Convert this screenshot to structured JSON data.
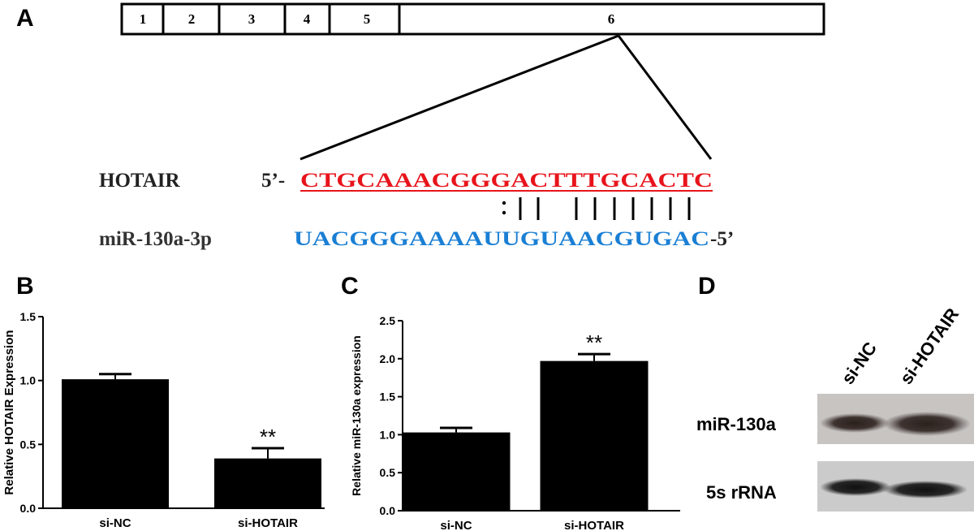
{
  "panels": {
    "a": "A",
    "b": "B",
    "c": "C",
    "d": "D"
  },
  "gene_map": {
    "exons": [
      "1",
      "2",
      "3",
      "4",
      "5",
      "6"
    ]
  },
  "alignment": {
    "hotair_label": "HOTAIR",
    "hotair_prefix": "5’-",
    "hotair_seq": "CTGCAAACGGGACTTTGCACTC",
    "pairing": ":||  |||||||",
    "mir_label": "miR-130a-3p",
    "mir_seq": "UACGGGAAAAUUGUAACGUGAC",
    "mir_suffix": "-5’",
    "colors": {
      "hotair": "#e8141b",
      "mir": "#1a7fd4"
    }
  },
  "western": {
    "lane_labels": [
      "si-NC",
      "si-HOTAIR"
    ],
    "row_labels": [
      "miR-130a",
      "5s rRNA"
    ]
  },
  "chart_data": [
    {
      "type": "bar",
      "panel": "B",
      "categories": [
        "si-NC",
        "si-HOTAIR"
      ],
      "values": [
        1.01,
        0.39
      ],
      "errors": [
        0.04,
        0.08
      ],
      "significance": [
        "",
        "**"
      ],
      "ylabel": "Relative HOTAIR Expression",
      "ylim": [
        0,
        1.5
      ],
      "yticks": [
        "0.0",
        "0.5",
        "1.0",
        "1.5"
      ]
    },
    {
      "type": "bar",
      "panel": "C",
      "categories": [
        "si-NC",
        "si-HOTAIR"
      ],
      "values": [
        1.03,
        1.97
      ],
      "errors": [
        0.06,
        0.09
      ],
      "significance": [
        "",
        "**"
      ],
      "ylabel": "Relative miR-130a expression",
      "ylim": [
        0,
        2.5
      ],
      "yticks": [
        "0.0",
        "0.5",
        "1.0",
        "1.5",
        "2.0",
        "2.5"
      ]
    }
  ]
}
